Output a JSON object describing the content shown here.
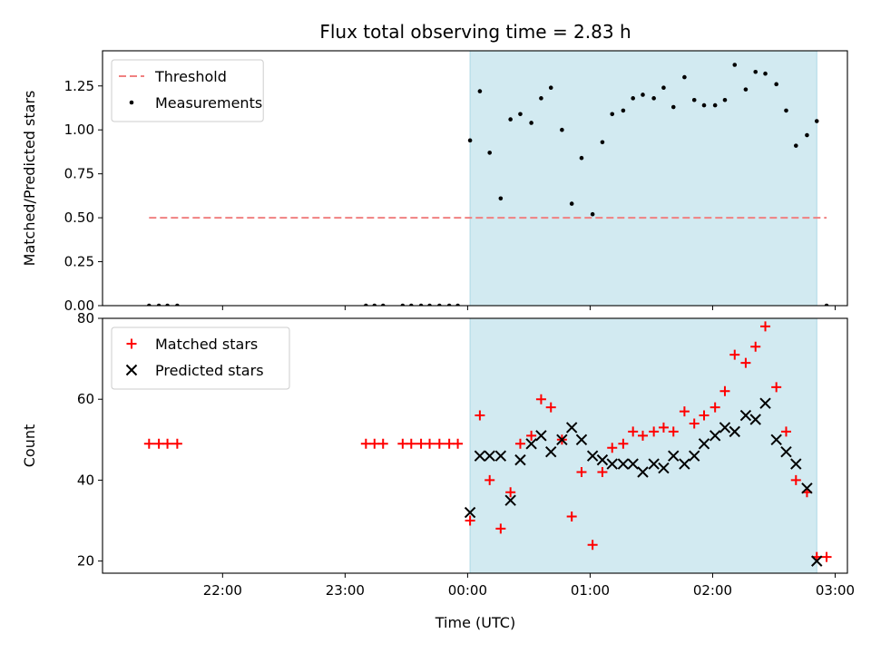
{
  "chart_data": {
    "type": "scatter",
    "title": "Flux total observing time = 2.83 h",
    "xlabel": "Time (UTC)",
    "x_unit": "hours",
    "xlim": [
      -2.98,
      3.1
    ],
    "xticks": [
      {
        "value": -2,
        "label": "22:00"
      },
      {
        "value": -1,
        "label": "23:00"
      },
      {
        "value": 0,
        "label": "00:00"
      },
      {
        "value": 1,
        "label": "01:00"
      },
      {
        "value": 2,
        "label": "02:00"
      },
      {
        "value": 3,
        "label": "03:00"
      }
    ],
    "shaded_interval": {
      "x0": 0.02,
      "x1": 2.85,
      "color": "#add8e6"
    },
    "panels": [
      {
        "id": "ratio",
        "ylabel": "Matched/Predicted stars",
        "ylim": [
          0,
          1.45
        ],
        "yticks": [
          {
            "value": 0,
            "label": "0.00"
          },
          {
            "value": 0.25,
            "label": "0.25"
          },
          {
            "value": 0.5,
            "label": "0.50"
          },
          {
            "value": 0.75,
            "label": "0.75"
          },
          {
            "value": 1.0,
            "label": "1.00"
          },
          {
            "value": 1.25,
            "label": "1.25"
          }
        ],
        "legend": {
          "location": "upper left"
        },
        "series": [
          {
            "name": "Threshold",
            "kind": "dashed-line",
            "color": "#f08080",
            "x": [
              -2.6,
              2.93
            ],
            "y": [
              0.5,
              0.5
            ]
          },
          {
            "name": "Measurements",
            "kind": "dot",
            "color": "#000000",
            "x": [
              -2.6,
              -2.52,
              -2.45,
              -2.37,
              -0.83,
              -0.76,
              -0.69,
              -0.53,
              -0.46,
              -0.38,
              -0.31,
              -0.23,
              -0.15,
              -0.08,
              0.02,
              0.1,
              0.18,
              0.27,
              0.35,
              0.43,
              0.52,
              0.6,
              0.68,
              0.77,
              0.85,
              0.93,
              1.02,
              1.1,
              1.18,
              1.27,
              1.35,
              1.43,
              1.52,
              1.6,
              1.68,
              1.77,
              1.85,
              1.93,
              2.02,
              2.1,
              2.18,
              2.27,
              2.35,
              2.43,
              2.52,
              2.6,
              2.68,
              2.77,
              2.85,
              2.93
            ],
            "y": [
              0,
              0,
              0,
              0,
              0,
              0,
              0,
              0,
              0,
              0,
              0,
              0,
              0,
              0,
              0.94,
              1.22,
              0.87,
              0.61,
              1.06,
              1.09,
              1.04,
              1.18,
              1.24,
              1.0,
              0.58,
              0.84,
              0.52,
              0.93,
              1.09,
              1.11,
              1.18,
              1.2,
              1.18,
              1.24,
              1.13,
              1.3,
              1.17,
              1.14,
              1.14,
              1.17,
              1.37,
              1.23,
              1.33,
              1.32,
              1.26,
              1.11,
              0.91,
              0.97,
              1.05,
              0
            ]
          }
        ]
      },
      {
        "id": "count",
        "ylabel": "Count",
        "ylim": [
          17,
          80
        ],
        "yticks": [
          {
            "value": 20,
            "label": "20"
          },
          {
            "value": 40,
            "label": "40"
          },
          {
            "value": 60,
            "label": "60"
          },
          {
            "value": 80,
            "label": "80"
          }
        ],
        "legend": {
          "location": "upper left"
        },
        "series": [
          {
            "name": "Matched stars",
            "kind": "plus",
            "color": "#ff0000",
            "x": [
              -2.6,
              -2.52,
              -2.45,
              -2.37,
              -0.83,
              -0.76,
              -0.69,
              -0.53,
              -0.46,
              -0.38,
              -0.31,
              -0.23,
              -0.15,
              -0.08,
              0.02,
              0.1,
              0.18,
              0.27,
              0.35,
              0.43,
              0.52,
              0.6,
              0.68,
              0.77,
              0.85,
              0.93,
              1.02,
              1.1,
              1.18,
              1.27,
              1.35,
              1.43,
              1.52,
              1.6,
              1.68,
              1.77,
              1.85,
              1.93,
              2.02,
              2.1,
              2.18,
              2.27,
              2.35,
              2.43,
              2.52,
              2.6,
              2.68,
              2.77,
              2.85,
              2.93
            ],
            "y": [
              49,
              49,
              49,
              49,
              49,
              49,
              49,
              49,
              49,
              49,
              49,
              49,
              49,
              49,
              30,
              56,
              40,
              28,
              37,
              49,
              51,
              60,
              58,
              50,
              31,
              42,
              24,
              42,
              48,
              49,
              52,
              51,
              52,
              53,
              52,
              57,
              54,
              56,
              58,
              62,
              71,
              69,
              73,
              78,
              63,
              52,
              40,
              37,
              21,
              21
            ]
          },
          {
            "name": "Predicted stars",
            "kind": "x",
            "color": "#000000",
            "x": [
              0.02,
              0.1,
              0.18,
              0.27,
              0.35,
              0.43,
              0.52,
              0.6,
              0.68,
              0.77,
              0.85,
              0.93,
              1.02,
              1.1,
              1.18,
              1.27,
              1.35,
              1.43,
              1.52,
              1.6,
              1.68,
              1.77,
              1.85,
              1.93,
              2.02,
              2.1,
              2.18,
              2.27,
              2.35,
              2.43,
              2.52,
              2.6,
              2.68,
              2.77,
              2.85
            ],
            "y": [
              32,
              46,
              46,
              46,
              35,
              45,
              49,
              51,
              47,
              50,
              53,
              50,
              46,
              45,
              44,
              44,
              44,
              42,
              44,
              43,
              46,
              44,
              46,
              49,
              51,
              53,
              52,
              56,
              55,
              59,
              50,
              47,
              44,
              38,
              20
            ]
          }
        ]
      }
    ]
  }
}
